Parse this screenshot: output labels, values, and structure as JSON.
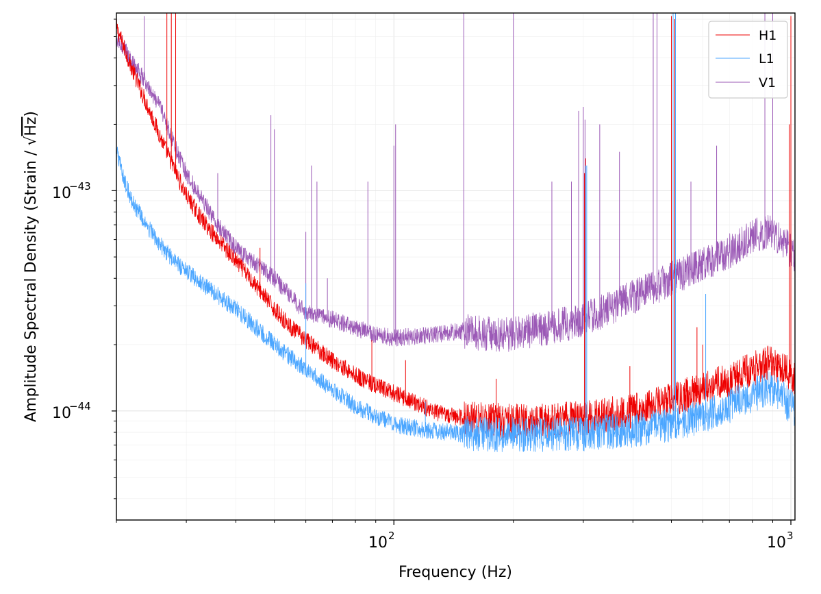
{
  "chart_data": {
    "type": "line",
    "xscale": "log",
    "yscale": "log",
    "xlabel": "Frequency (Hz)",
    "ylabel_prefix": "Amplitude Spectral Density (Strain / ",
    "ylabel_radical": "√",
    "ylabel_radicand": "Hz",
    "ylabel_suffix": ")",
    "xlim": [
      20,
      1024
    ],
    "ylim": [
      3.2e-45,
      6.4e-43
    ],
    "grid": true,
    "legend_position": "top-right",
    "x_major_ticks": [
      {
        "value": 100,
        "base": "10",
        "exp": "2"
      },
      {
        "value": 1000,
        "base": "10",
        "exp": "3"
      }
    ],
    "y_major_ticks": [
      {
        "value": 1e-44,
        "base": "10",
        "exp": "−44"
      },
      {
        "value": 1e-43,
        "base": "10",
        "exp": "−43"
      }
    ],
    "series": [
      {
        "name": "H1",
        "color": "#ee0000",
        "base": [
          [
            20,
            5.5e-43
          ],
          [
            22,
            3.5e-43
          ],
          [
            24,
            2.4e-43
          ],
          [
            26,
            1.7e-43
          ],
          [
            28,
            1.25e-43
          ],
          [
            30,
            9.5e-44
          ],
          [
            33,
            7.3e-44
          ],
          [
            36,
            6e-44
          ],
          [
            40,
            4.8e-44
          ],
          [
            45,
            3.7e-44
          ],
          [
            50,
            2.9e-44
          ],
          [
            55,
            2.4e-44
          ],
          [
            60,
            2.1e-44
          ],
          [
            70,
            1.7e-44
          ],
          [
            80,
            1.45e-44
          ],
          [
            90,
            1.3e-44
          ],
          [
            100,
            1.2e-44
          ],
          [
            115,
            1.08e-44
          ],
          [
            130,
            9.7e-45
          ],
          [
            150,
            9.3e-45
          ],
          [
            200,
            9e-45
          ],
          [
            250,
            9e-45
          ],
          [
            300,
            9.3e-45
          ],
          [
            400,
            1e-44
          ],
          [
            500,
            1.12e-44
          ],
          [
            600,
            1.25e-44
          ],
          [
            700,
            1.38e-44
          ],
          [
            800,
            1.55e-44
          ],
          [
            880,
            1.65e-44
          ],
          [
            950,
            1.55e-44
          ],
          [
            1024,
            1.4e-44
          ]
        ],
        "lines": [
          [
            26.8,
            7e-43
          ],
          [
            27.5,
            6.8e-43
          ],
          [
            28.2,
            6.5e-43
          ],
          [
            35.7,
            6.5e-44
          ],
          [
            46,
            5.5e-44
          ],
          [
            88,
            2.1e-44
          ],
          [
            107,
            1.7e-44
          ],
          [
            181,
            1.4e-44
          ],
          [
            215,
            1e-44
          ],
          [
            302,
            1.2e-43
          ],
          [
            304,
            1.4e-43
          ],
          [
            393,
            1.6e-44
          ],
          [
            500,
            6.2e-43
          ],
          [
            510,
            6e-43
          ],
          [
            580,
            2.4e-44
          ],
          [
            600,
            2e-44
          ],
          [
            990,
            2e-43
          ],
          [
            1000,
            6.2e-43
          ]
        ]
      },
      {
        "name": "L1",
        "color": "#4ba6ff",
        "base": [
          [
            20,
            1.5e-43
          ],
          [
            21,
            1.1e-43
          ],
          [
            22,
            8.8e-44
          ],
          [
            24,
            6.8e-44
          ],
          [
            26,
            5.6e-44
          ],
          [
            28,
            4.8e-44
          ],
          [
            30,
            4.3e-44
          ],
          [
            34,
            3.6e-44
          ],
          [
            40,
            2.9e-44
          ],
          [
            45,
            2.4e-44
          ],
          [
            50,
            2e-44
          ],
          [
            60,
            1.55e-44
          ],
          [
            70,
            1.25e-44
          ],
          [
            80,
            1.05e-44
          ],
          [
            90,
            9.5e-45
          ],
          [
            100,
            8.7e-45
          ],
          [
            120,
            8.2e-45
          ],
          [
            150,
            7.9e-45
          ],
          [
            200,
            7.8e-45
          ],
          [
            300,
            7.9e-45
          ],
          [
            400,
            8.2e-45
          ],
          [
            500,
            8.7e-45
          ],
          [
            600,
            9.5e-45
          ],
          [
            700,
            1.05e-44
          ],
          [
            800,
            1.18e-44
          ],
          [
            880,
            1.28e-44
          ],
          [
            950,
            1.15e-44
          ],
          [
            1024,
            1e-44
          ]
        ],
        "lines": [
          [
            40,
            2.9e-44
          ],
          [
            44,
            2.5e-44
          ],
          [
            60,
            3.8e-44
          ],
          [
            120,
            1.1e-44
          ],
          [
            304,
            1.3e-43
          ],
          [
            306,
            1.3e-43
          ],
          [
            505,
            6.4e-43
          ],
          [
            512,
            6.4e-43
          ],
          [
            610,
            3.4e-44
          ],
          [
            1024,
            2.3e-44
          ]
        ]
      },
      {
        "name": "V1",
        "color": "#9b59b6",
        "base": [
          [
            20,
            5e-43
          ],
          [
            22,
            3.8e-43
          ],
          [
            24,
            3e-43
          ],
          [
            26,
            2.3e-43
          ],
          [
            28,
            1.6e-43
          ],
          [
            30,
            1.2e-43
          ],
          [
            33,
            9e-44
          ],
          [
            36,
            7e-44
          ],
          [
            40,
            5.5e-44
          ],
          [
            45,
            4.6e-44
          ],
          [
            50,
            4e-44
          ],
          [
            55,
            3.3e-44
          ],
          [
            60,
            2.8e-44
          ],
          [
            70,
            2.6e-44
          ],
          [
            80,
            2.4e-44
          ],
          [
            90,
            2.2e-44
          ],
          [
            100,
            2.15e-44
          ],
          [
            120,
            2.2e-44
          ],
          [
            150,
            2.3e-44
          ],
          [
            190,
            2.2e-44
          ],
          [
            200,
            2.25e-44
          ],
          [
            250,
            2.4e-44
          ],
          [
            300,
            2.6e-44
          ],
          [
            350,
            2.9e-44
          ],
          [
            400,
            3.3e-44
          ],
          [
            450,
            3.6e-44
          ],
          [
            500,
            4e-44
          ],
          [
            600,
            4.6e-44
          ],
          [
            700,
            5.3e-44
          ],
          [
            800,
            6.2e-44
          ],
          [
            880,
            6.6e-44
          ],
          [
            950,
            6e-44
          ],
          [
            1024,
            5e-44
          ]
        ],
        "lines": [
          [
            23.5,
            6.2e-43
          ],
          [
            36,
            1.2e-43
          ],
          [
            49,
            2.2e-43
          ],
          [
            50,
            1.9e-43
          ],
          [
            60,
            6.5e-44
          ],
          [
            62,
            1.3e-43
          ],
          [
            64,
            1.1e-43
          ],
          [
            68,
            4e-44
          ],
          [
            86,
            1.1e-43
          ],
          [
            100,
            1.6e-43
          ],
          [
            101,
            2e-43
          ],
          [
            150,
            6.4e-43
          ],
          [
            200,
            6.4e-43
          ],
          [
            250,
            1.1e-43
          ],
          [
            280,
            1.1e-43
          ],
          [
            292,
            2.3e-43
          ],
          [
            300,
            2.4e-43
          ],
          [
            303,
            2.1e-43
          ],
          [
            330,
            2e-43
          ],
          [
            370,
            1.5e-43
          ],
          [
            450,
            6.4e-43
          ],
          [
            460,
            6.4e-43
          ],
          [
            560,
            1.1e-43
          ],
          [
            650,
            1.6e-43
          ],
          [
            860,
            6.4e-43
          ],
          [
            900,
            6.4e-43
          ]
        ]
      }
    ]
  }
}
